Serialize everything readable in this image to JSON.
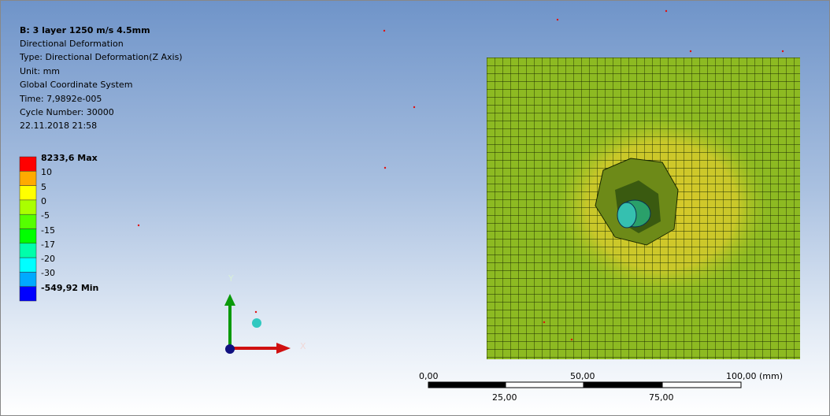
{
  "header": {
    "title": "B: 3 layer 1250 m/s 4.5mm",
    "lines": [
      "Directional Deformation",
      "Type: Directional Deformation(Z Axis)",
      "Unit: mm",
      "Global Coordinate System",
      "Time: 7,9892e-005",
      "Cycle Number: 30000",
      "22.11.2018 21:58"
    ]
  },
  "legend": {
    "labels": [
      "8233,6 Max",
      "10",
      "5",
      "0",
      "-5",
      "-15",
      "-17",
      "-20",
      "-30",
      "-549,92 Min"
    ]
  },
  "triad": {
    "y": "Y",
    "x": "X"
  },
  "scale": {
    "top": [
      "0,00",
      "50,00",
      "100,00 (mm)"
    ],
    "bottom": [
      "25,00",
      "75,00"
    ]
  }
}
